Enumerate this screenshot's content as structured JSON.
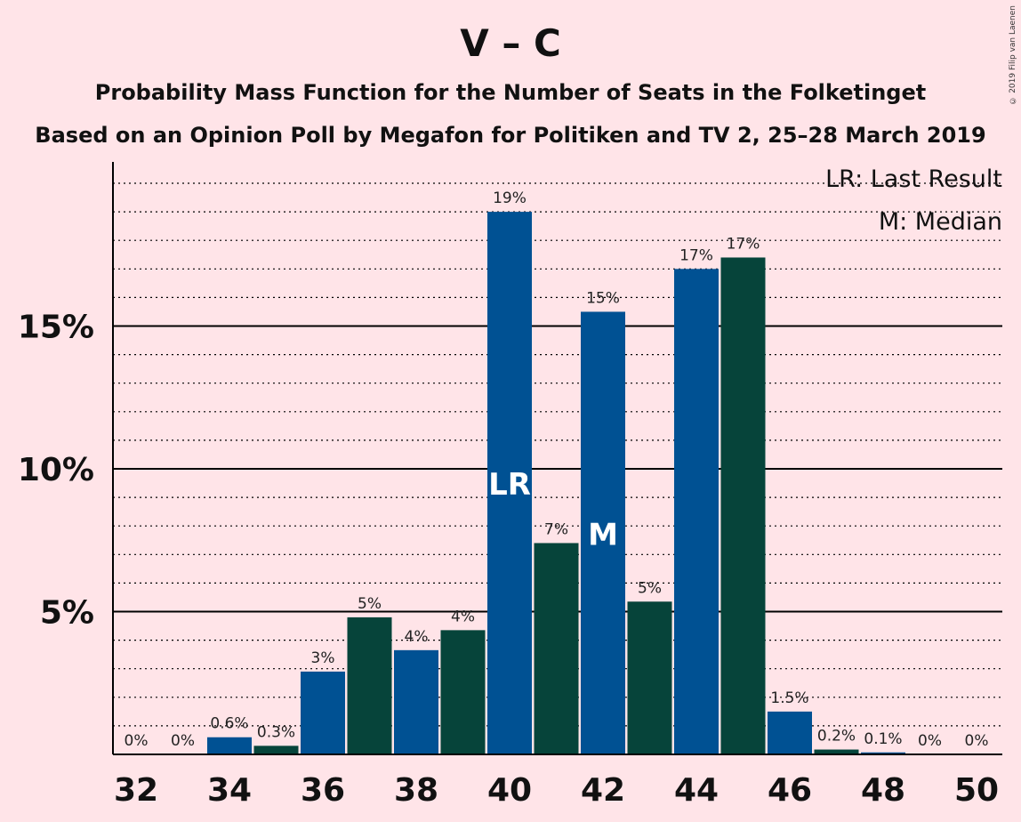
{
  "title": "V – C",
  "subtitle1": "Probability Mass Function for the Number of Seats in the Folketinget",
  "subtitle2": "Based on an Opinion Poll by Megafon for Politiken and TV 2, 25–28 March 2019",
  "copyright": "© 2019 Filip van Laenen",
  "colors": {
    "background": "#ffe4e8",
    "blue": "#005193",
    "green": "#06443a"
  },
  "chart_data": {
    "type": "bar",
    "x": [
      32,
      33,
      34,
      35,
      36,
      37,
      38,
      39,
      40,
      41,
      42,
      43,
      44,
      45,
      46,
      47,
      48,
      49,
      50
    ],
    "values": [
      0,
      0,
      0.6,
      0.3,
      2.9,
      4.8,
      3.65,
      4.35,
      19.0,
      7.4,
      15.5,
      5.35,
      17.0,
      17.4,
      1.5,
      0.17,
      0.07,
      0,
      0
    ],
    "bar_colors": [
      "blue",
      "green",
      "blue",
      "green",
      "blue",
      "green",
      "blue",
      "green",
      "blue",
      "green",
      "blue",
      "green",
      "blue",
      "green",
      "blue",
      "green",
      "blue",
      "green",
      "blue"
    ],
    "data_labels": [
      "0%",
      "0%",
      "0.6%",
      "0.3%",
      "3%",
      "5%",
      "4%",
      "4%",
      "19%",
      "7%",
      "15%",
      "5%",
      "17%",
      "17%",
      "1.5%",
      "0.2%",
      "0.1%",
      "0%",
      "0%"
    ],
    "x_tick_labels": [
      "32",
      "34",
      "36",
      "38",
      "40",
      "42",
      "44",
      "46",
      "48",
      "50"
    ],
    "x_ticks": [
      32,
      34,
      36,
      38,
      40,
      42,
      44,
      46,
      48,
      50
    ],
    "y_tick_labels": [
      "5%",
      "10%",
      "15%"
    ],
    "y_ticks": [
      5,
      10,
      15
    ],
    "ylim": [
      0,
      20.7
    ],
    "minor_grid_step": 1,
    "bar_annotations": [
      {
        "x": 40,
        "text": "LR"
      },
      {
        "x": 42,
        "text": "M"
      }
    ],
    "legend": [
      "LR: Last Result",
      "M: Median"
    ],
    "legend_position": "top-right"
  }
}
